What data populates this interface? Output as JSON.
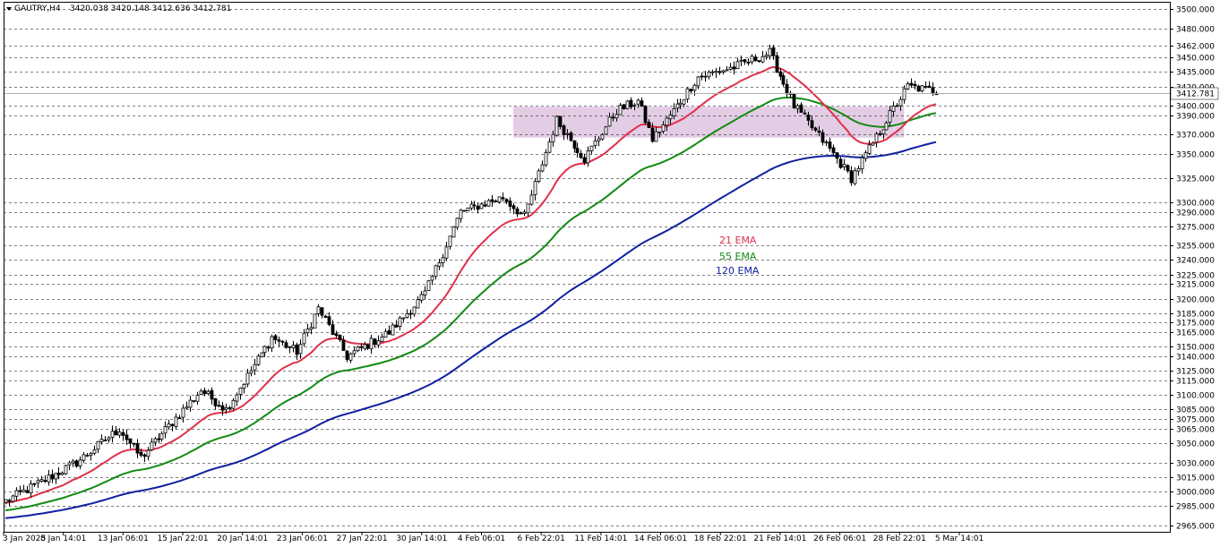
{
  "header": {
    "symbol": "GAUTRY,H4",
    "ohlc": "3420.038 3420.148 3412.636 3412.781"
  },
  "colors": {
    "ema21": "#e0304a",
    "ema55": "#138a13",
    "ema120": "#1020a0",
    "zone": "#d9bcdc",
    "grid": "#000000",
    "candle": "#000000"
  },
  "chart_data": {
    "type": "candlestick",
    "ylim": [
      2960,
      3506
    ],
    "y_ticks": [
      3500,
      3480,
      3462,
      3450,
      3435,
      3420,
      3400,
      3390,
      3370,
      3350,
      3325,
      3300,
      3290,
      3275,
      3255,
      3240,
      3225,
      3215,
      3200,
      3185,
      3175,
      3165,
      3150,
      3140,
      3125,
      3115,
      3100,
      3085,
      3075,
      3065,
      3050,
      3030,
      3015,
      3000,
      2985,
      2965
    ],
    "y_tick_labels": [
      "3500.000",
      "3480.000",
      "3462.000",
      "3450.000",
      "3435.000",
      "3420.000",
      "3400.000",
      "3390.000",
      "3370.000",
      "3350.000",
      "3325.000",
      "3300.000",
      "3290.000",
      "3275.000",
      "3255.000",
      "3240.000",
      "3225.000",
      "3215.000",
      "3200.000",
      "3185.000",
      "3175.000",
      "3165.000",
      "3150.000",
      "3140.000",
      "3125.000",
      "3115.000",
      "3100.000",
      "3085.000",
      "3075.000",
      "3065.000",
      "3050.000",
      "3030.000",
      "3015.000",
      "3000.000",
      "2985.000",
      "2965.000"
    ],
    "current_price": 3412.781,
    "current_price_label": "3412.781",
    "x_labels": [
      "3 Jan 2025",
      "8 Jan 14:01",
      "13 Jan 06:01",
      "15 Jan 22:01",
      "20 Jan 14:01",
      "23 Jan 06:01",
      "27 Jan 22:01",
      "30 Jan 14:01",
      "4 Feb 06:01",
      "6 Feb 22:01",
      "11 Feb 14:01",
      "14 Feb 06:01",
      "18 Feb 22:01",
      "21 Feb 14:01",
      "26 Feb 06:01",
      "28 Feb 22:01",
      "5 Mar 14:01"
    ],
    "zone": {
      "low": 3367,
      "high": 3399,
      "from_bar": 143,
      "to_bar": 253
    },
    "ema_labels": {
      "ema21": "21 EMA",
      "ema55": "55 EMA",
      "ema120": "120 EMA"
    },
    "key_prices": [
      {
        "bar": 0,
        "price": 2990
      },
      {
        "bar": 20,
        "price": 3030
      },
      {
        "bar": 32,
        "price": 3065
      },
      {
        "bar": 38,
        "price": 3035
      },
      {
        "bar": 55,
        "price": 3105
      },
      {
        "bar": 62,
        "price": 3085
      },
      {
        "bar": 75,
        "price": 3160
      },
      {
        "bar": 82,
        "price": 3145
      },
      {
        "bar": 88,
        "price": 3190
      },
      {
        "bar": 96,
        "price": 3140
      },
      {
        "bar": 108,
        "price": 3165
      },
      {
        "bar": 118,
        "price": 3205
      },
      {
        "bar": 128,
        "price": 3290
      },
      {
        "bar": 140,
        "price": 3305
      },
      {
        "bar": 146,
        "price": 3285
      },
      {
        "bar": 155,
        "price": 3385
      },
      {
        "bar": 163,
        "price": 3345
      },
      {
        "bar": 172,
        "price": 3395
      },
      {
        "bar": 178,
        "price": 3405
      },
      {
        "bar": 182,
        "price": 3365
      },
      {
        "bar": 195,
        "price": 3430
      },
      {
        "bar": 205,
        "price": 3440
      },
      {
        "bar": 215,
        "price": 3455
      },
      {
        "bar": 222,
        "price": 3400
      },
      {
        "bar": 232,
        "price": 3355
      },
      {
        "bar": 238,
        "price": 3325
      },
      {
        "bar": 248,
        "price": 3385
      },
      {
        "bar": 254,
        "price": 3420
      },
      {
        "bar": 262,
        "price": 3415
      }
    ],
    "bar_count": 263
  }
}
